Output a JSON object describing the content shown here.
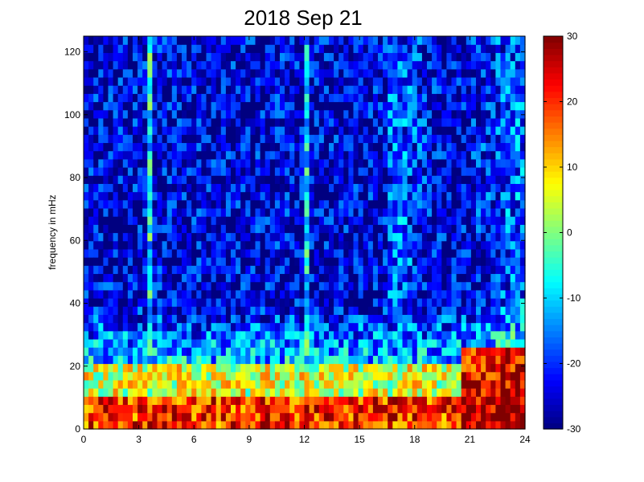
{
  "chart_data": {
    "type": "heatmap",
    "title": "2018 Sep 21",
    "xlabel": "",
    "ylabel": "frequency in mHz",
    "xlim": [
      0,
      24
    ],
    "ylim": [
      0,
      125
    ],
    "x_ticks": [
      0,
      3,
      6,
      9,
      12,
      15,
      18,
      21,
      24
    ],
    "y_ticks": [
      0,
      20,
      40,
      60,
      80,
      100,
      120
    ],
    "colorbar": {
      "colormap": "jet",
      "clim": [
        -30,
        30
      ],
      "ticks": [
        -30,
        -20,
        -10,
        0,
        10,
        20,
        30
      ]
    },
    "grid": false,
    "approximate_field": {
      "description_units": "color values on colorbar scale",
      "background_high_freq": -25,
      "low_freq_band_0_10_mHz": 20,
      "band_10_20_mHz": 5,
      "vertical_streaks_hours": [
        3.6,
        12.1
      ],
      "enhanced_power_after_hour": 20.5,
      "late_day_low_freq_value": 30
    }
  }
}
